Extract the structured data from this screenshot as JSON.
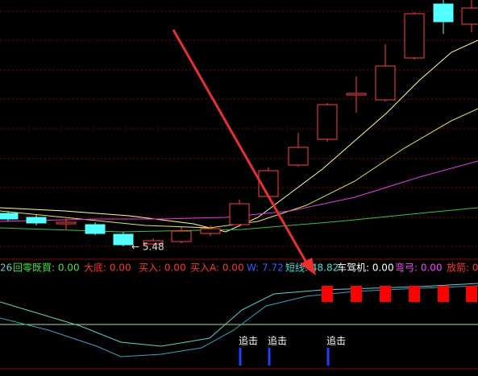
{
  "indicator_bar": {
    "items": [
      "26",
      "回零既買: 0.00",
      "大底: 0.00",
      "买入: 0.00",
      "买入A: 0.00",
      "W: 7.72",
      "短线: 48.82",
      "车驾机: 0.00",
      "弯弓: 0.00",
      "放箭: 0"
    ]
  },
  "price_label": "← 5.48",
  "signals": [
    "追击",
    "追击",
    "追击"
  ]
}
